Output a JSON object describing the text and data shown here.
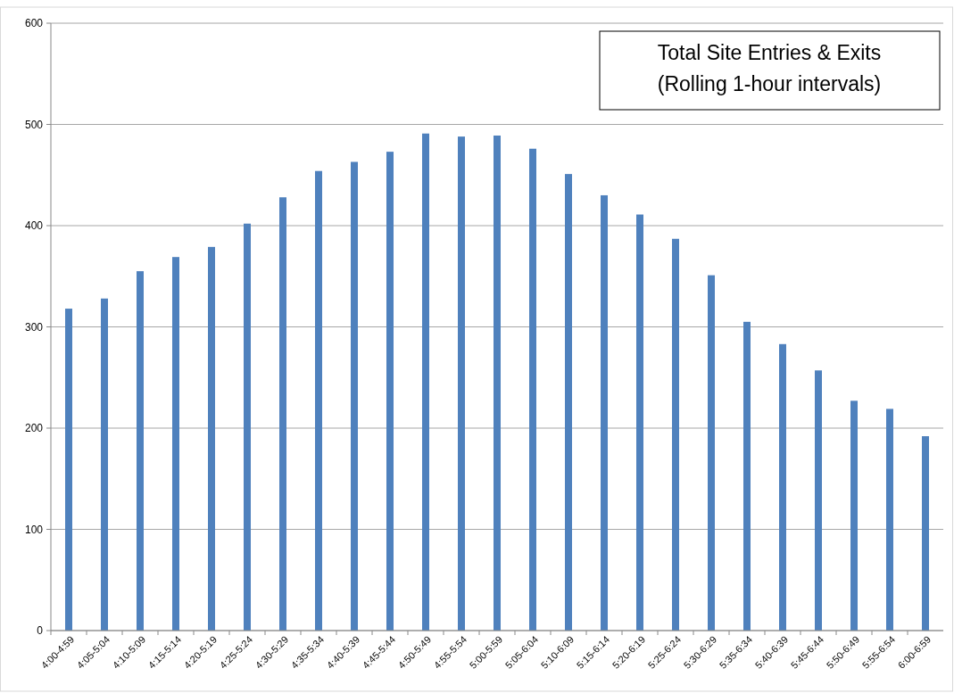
{
  "chart_data": {
    "type": "bar",
    "title": "Total Site Entries & Exits",
    "subtitle": "(Rolling 1-hour intervals)",
    "categories": [
      "4:00-4:59",
      "4:05-5:04",
      "4:10-5:09",
      "4:15-5:14",
      "4:20-5:19",
      "4:25-5:24",
      "4:30-5:29",
      "4:35-5:34",
      "4:40-5:39",
      "4:45-5:44",
      "4:50-5:49",
      "4:55-5:54",
      "5:00-5:59",
      "5:05-6:04",
      "5:10-6:09",
      "5:15-6:14",
      "5:20-6:19",
      "5:25-6:24",
      "5:30-6:29",
      "5:35-6:34",
      "5:40-6:39",
      "5:45-6:44",
      "5:50-6:49",
      "5:55-6:54",
      "6:00-6:59"
    ],
    "values": [
      318,
      328,
      355,
      369,
      379,
      402,
      428,
      454,
      463,
      473,
      491,
      488,
      489,
      476,
      451,
      430,
      411,
      387,
      351,
      305,
      283,
      257,
      227,
      219,
      192
    ],
    "color": "#4f81bd",
    "ylim": [
      0,
      600
    ],
    "yticks": [
      0,
      100,
      200,
      300,
      400,
      500,
      600
    ],
    "grid": "y"
  }
}
